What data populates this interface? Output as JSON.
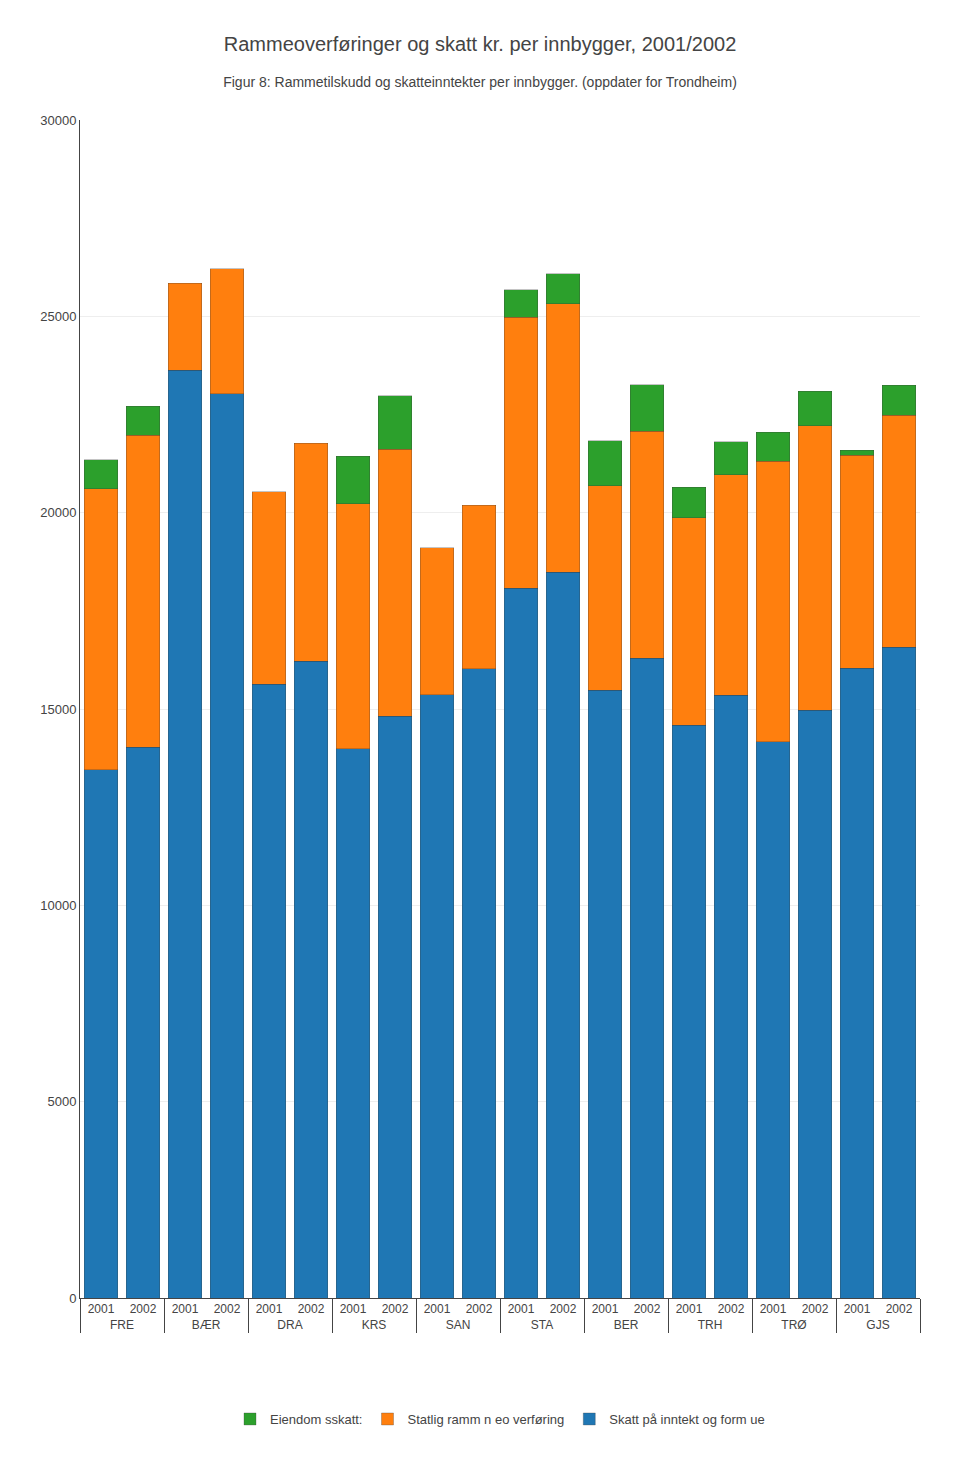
{
  "chart_data": {
    "type": "bar",
    "title": "Rammeoverføringer og skatt kr. per innbygger, 2001/2002",
    "subtitle": "Figur 8: Rammetilskudd og skatteinntekter per innbygger. (oppdater for Trondheim)",
    "categories": [
      "2001",
      "2002",
      "2001",
      "2002",
      "2001",
      "2002",
      "2001",
      "2002",
      "2001",
      "2002",
      "2001",
      "2002",
      "2001",
      "2002",
      "2001",
      "2002",
      "2001",
      "2002",
      "2001",
      "2002"
    ],
    "groups": [
      "FRE",
      "FRE",
      "BÆR",
      "BÆR",
      "DRA",
      "DRA",
      "KRS",
      "KRS",
      "SAN",
      "SAN",
      "STA",
      "STA",
      "BER",
      "BER",
      "TRH",
      "TRH",
      "TRØ",
      "TRØ",
      "GJS",
      "GJS"
    ],
    "series": [
      {
        "name": "Skatt på inntekt og form ue",
        "values": [
          13456,
          14027,
          23626,
          23033,
          15634,
          16214,
          13989,
          14816,
          15367,
          16023,
          18076,
          18479,
          15472,
          16287,
          14584,
          15353,
          14162,
          14966,
          16041,
          16578
        ]
      },
      {
        "name": "Statlig ramm n eo verføring",
        "values": [
          7150,
          7942,
          2218,
          3181,
          4893,
          5550,
          6232,
          6794,
          3740,
          4162,
          6907,
          6845,
          5216,
          5782,
          5293,
          5617,
          7150,
          7245,
          5422,
          5902
        ]
      },
      {
        "name": "Eiendom sskatt:",
        "values": [
          743,
          747,
          null,
          null,
          null,
          null,
          1220,
          1370,
          null,
          null,
          692,
          761,
          1142,
          1190,
          773,
          842,
          733,
          884,
          129,
          763
        ]
      }
    ],
    "stacked": true,
    "ylim": [
      0,
      30000
    ],
    "yticks": [
      0,
      5000,
      10000,
      15000,
      20000,
      25000,
      30000
    ],
    "grid": true,
    "legend": "bottom"
  }
}
